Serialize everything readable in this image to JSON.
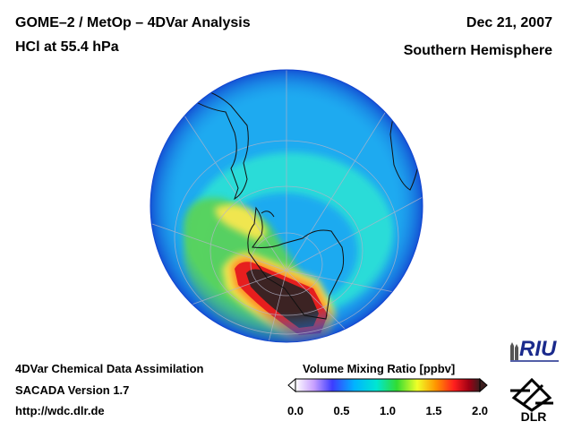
{
  "header": {
    "title_line1": "GOME–2 / MetOp – 4DVar Analysis",
    "title_line2": "HCl at 55.4 hPa",
    "date": "Dec 21, 2007",
    "hemisphere": "Southern Hemisphere"
  },
  "footer": {
    "line1": "4DVar Chemical Data Assimilation",
    "line2": "SACADA Version 1.7",
    "line3": "http://wdc.dlr.de"
  },
  "colorbar": {
    "title": "Volume Mixing Ratio [ppbv]",
    "ticks": [
      "0.0",
      "0.5",
      "1.0",
      "1.5",
      "2.0"
    ],
    "range": [
      0.0,
      2.0
    ],
    "colors": [
      "#ffffff",
      "#c8a0ff",
      "#3c3cff",
      "#00b4ff",
      "#00e6d2",
      "#32dc32",
      "#f0ff28",
      "#ff9600",
      "#ff1e1e",
      "#a00014",
      "#3c1e1e"
    ]
  },
  "logos": {
    "riu": "RIU",
    "dlr": "DLR"
  },
  "map": {
    "type": "polar-stereographic",
    "field_colors": {
      "background": "#1eaaf0",
      "edge": "#1455dc",
      "cyan": "#28dcdc",
      "green": "#5ad25a",
      "yellow": "#f0e650",
      "orange": "#ff8c28",
      "red": "#e61e1e",
      "dark": "#3c2323"
    }
  }
}
